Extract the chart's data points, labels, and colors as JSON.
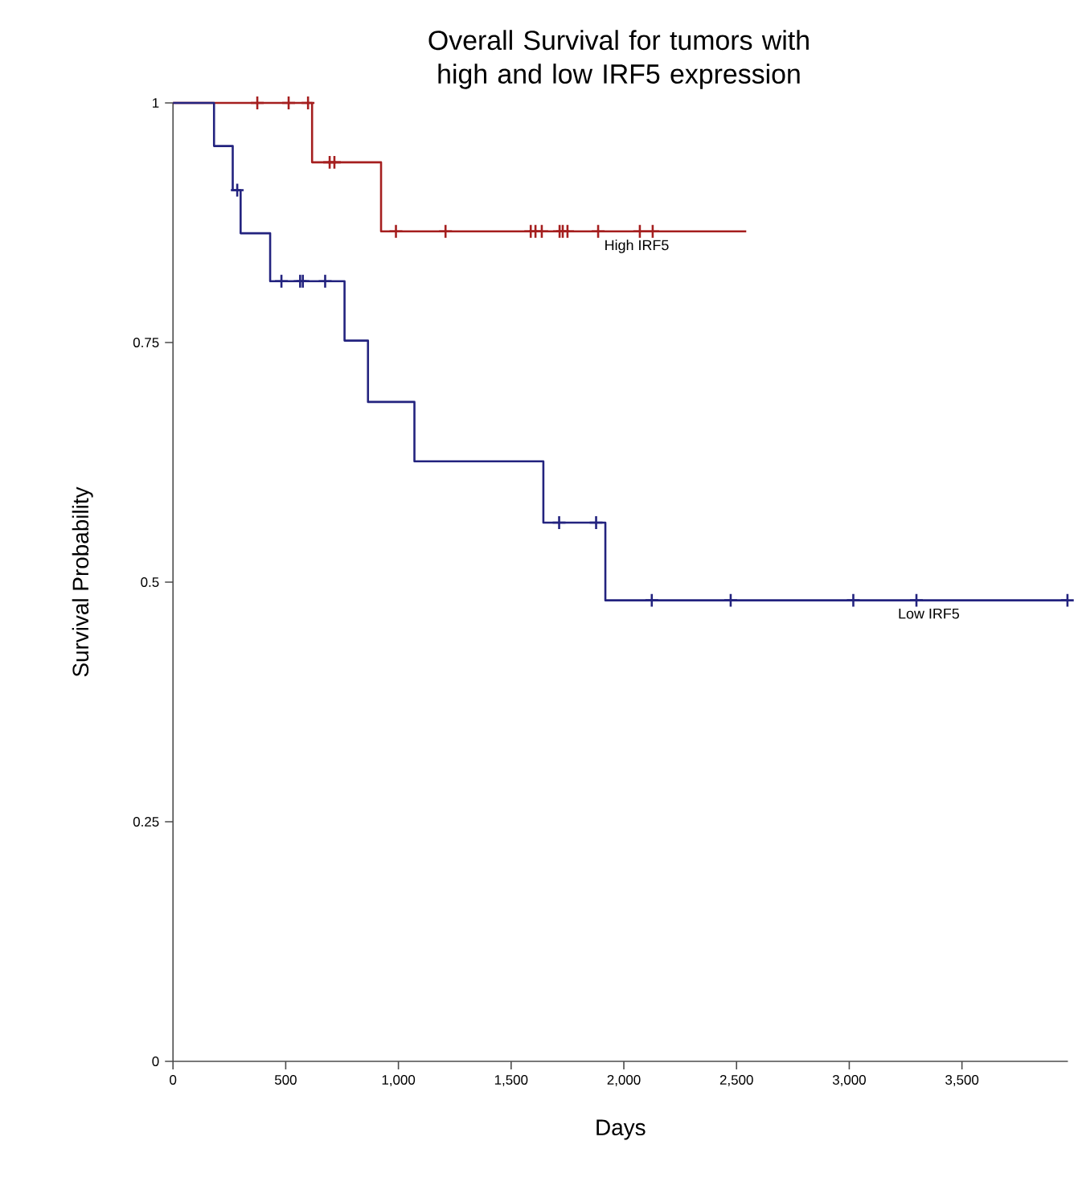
{
  "chart_data": {
    "type": "step",
    "title": "Overall Survival for tumors with high and low IRF5 expression",
    "xlabel": "Days",
    "ylabel": "Survival Probability",
    "xlim": [
      0,
      3970
    ],
    "ylim": [
      0,
      1
    ],
    "xticks": [
      0,
      500,
      {
        "value": 1000,
        "label": "1,000"
      },
      {
        "value": 1500,
        "label": "1,500"
      },
      {
        "value": 2000,
        "label": "2,000"
      },
      {
        "value": 2500,
        "label": "2,500"
      },
      {
        "value": 3000,
        "label": "3,000"
      },
      {
        "value": 3500,
        "label": "3,500"
      }
    ],
    "yticks": [
      0,
      0.25,
      0.5,
      0.75,
      1
    ],
    "grid": false,
    "series": [
      {
        "name": "High IRF5",
        "marker": "none",
        "color": "#a51f1f",
        "x": [
          0,
          617,
          923,
          2543
        ],
        "values": [
          1,
          0.938,
          0.866,
          0.866
        ]
      },
      {
        "name": "Low IRF5",
        "marker": "none",
        "color": "#23237f",
        "x": [
          0,
          182,
          265,
          300,
          431,
          761,
          865,
          1071,
          1643,
          1918,
          3968
        ],
        "values": [
          1,
          0.955,
          0.909,
          0.864,
          0.814,
          0.752,
          0.688,
          0.626,
          0.562,
          0.481,
          0.481
        ]
      },
      {
        "type": "scatter",
        "marker": "cross",
        "color": "#a51f1f",
        "x": [
          374,
          513,
          599,
          695,
          716,
          989,
          1209,
          1587,
          1608,
          1636,
          1715,
          1729,
          1750,
          1886,
          2071,
          2128
        ],
        "values": [
          1,
          1,
          1,
          0.938,
          0.938,
          0.866,
          0.866,
          0.866,
          0.866,
          0.866,
          0.866,
          0.866,
          0.866,
          0.866,
          0.866,
          0.866
        ]
      },
      {
        "type": "scatter",
        "marker": "cross",
        "color": "#23237f",
        "x": [
          285,
          481,
          564,
          576,
          675,
          1713,
          1877,
          2124,
          2474,
          3018,
          3298,
          3968
        ],
        "values": [
          0.909,
          0.814,
          0.814,
          0.814,
          0.814,
          0.562,
          0.562,
          0.481,
          0.481,
          0.481,
          0.481,
          0.481
        ]
      }
    ]
  }
}
